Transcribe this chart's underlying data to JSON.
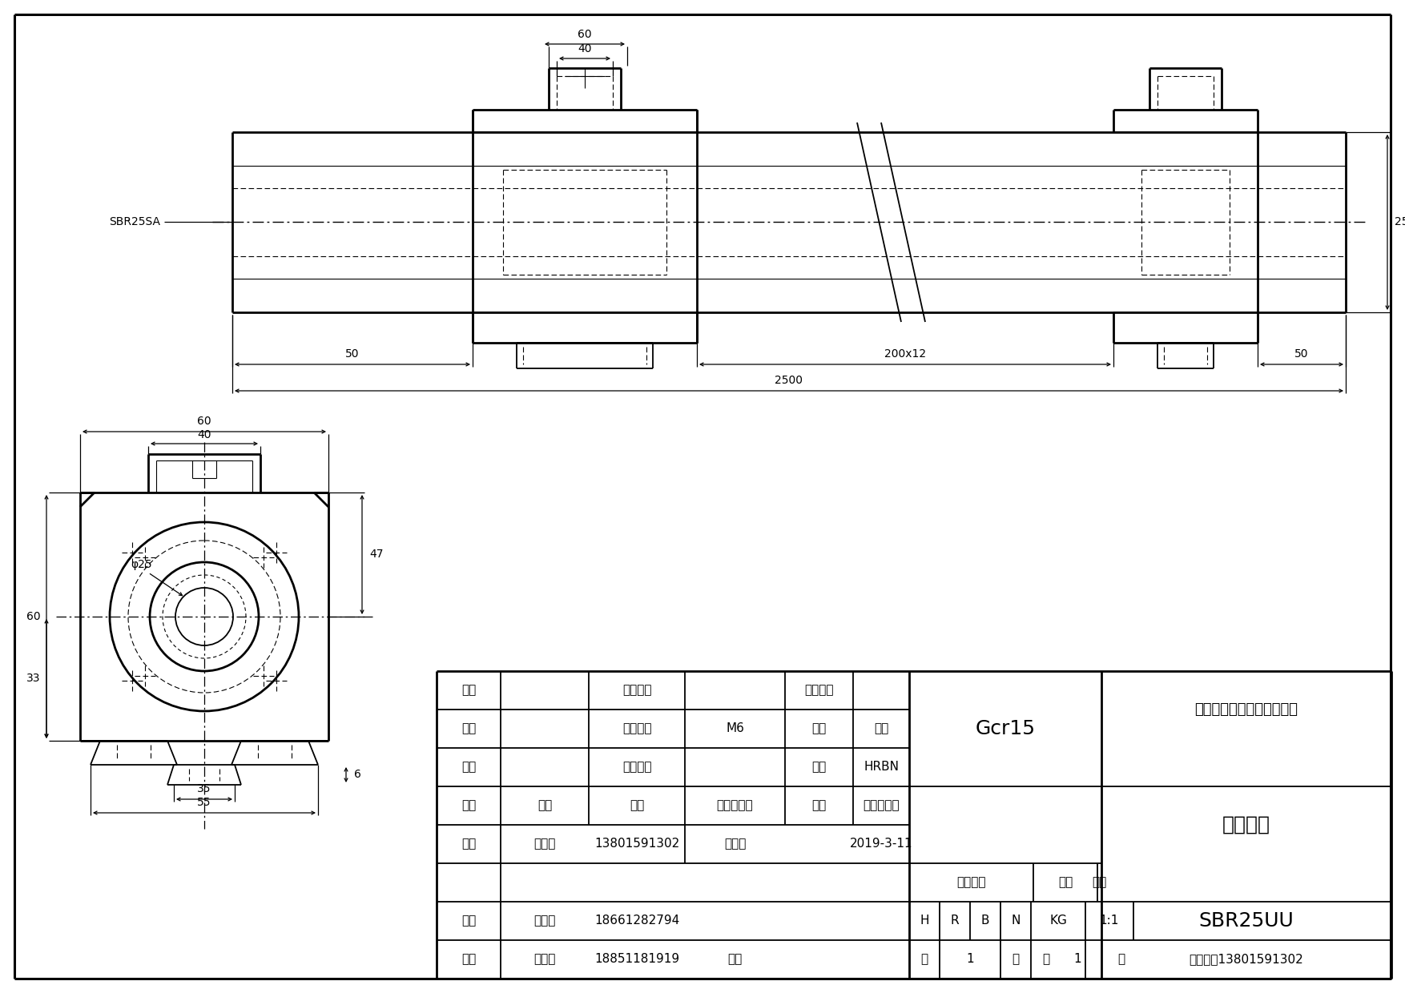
{
  "bg_color": "#ffffff",
  "title_company": "南京哈宁轴承制造有限公司",
  "title_product": "直线导轨",
  "title_model": "SBR25UU",
  "title_phone": "订货电话13801591302",
  "material": "Gcr15",
  "label_sbr25sa": "SBR25SA",
  "dim_60_top": "60",
  "dim_40_top": "40",
  "dim_25_right": "25",
  "dim_50_left": "50",
  "dim_200x12": "200x12",
  "dim_50_right": "50",
  "dim_2500": "2500",
  "dim_60_sv": "60",
  "dim_40_sv": "40",
  "dim_47_sv": "47",
  "dim_phi25": "φ25",
  "dim_33": "33",
  "dim_6": "6",
  "dim_35": "35",
  "dim_55": "55",
  "table_left": [
    [
      "直径",
      "",
      "钙球直径",
      "",
      "螺母编号",
      ""
    ],
    [
      "导程",
      "",
      "油嘴尺寸",
      "M6",
      "产地",
      "南京"
    ],
    [
      "圈数",
      "",
      "螺母重量",
      "",
      "品牌",
      "HRBN"
    ],
    [
      "标记",
      "处数",
      "分区",
      "更改文件号",
      "签名",
      "年、月、日"
    ],
    [
      "设计",
      "刘长岭",
      "13801591302",
      "标准化",
      "",
      "2019-3-11"
    ],
    [
      "",
      "",
      "",
      "",
      "",
      ""
    ],
    [
      "审核",
      "刘献宁",
      "18661282794",
      "",
      "",
      ""
    ],
    [
      "工艺",
      "田海飞",
      "18851181919",
      "批准",
      "",
      ""
    ]
  ]
}
